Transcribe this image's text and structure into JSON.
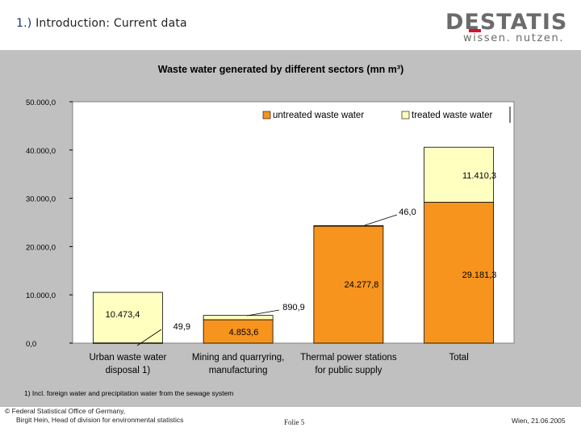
{
  "slide": {
    "title_number": "1.)",
    "title_section": "Introduction:",
    "title_topic": "Current data"
  },
  "logo": {
    "wordmark": "DESTATIS",
    "tagline": "wissen. nutzen."
  },
  "footer": {
    "copyright_line1": "© Federal Statistical Office of Germany,",
    "copyright_line2": "Birgit Hein, Head of division for environmental statistics",
    "slide_label": "Folie 5",
    "date": "Wien, 21.06.2005"
  },
  "colors": {
    "untreated": "#f7941d",
    "treated": "#ffffc0",
    "panel": "#c0c0c0"
  },
  "chart_data": {
    "type": "bar",
    "stacked": true,
    "title": "Waste water generated by different sectors (mn m³)",
    "categories": [
      [
        "Urban waste water",
        "disposal 1)"
      ],
      [
        "Mining and quarryring,",
        "manufacturing"
      ],
      [
        "Thermal power stations",
        "for public supply"
      ],
      [
        "Total"
      ]
    ],
    "series": [
      {
        "name": "untreated waste water",
        "values": [
          49.9,
          4853.6,
          24277.8,
          29181.3
        ],
        "labels": [
          "49,9",
          "4.853,6",
          "24.277,8",
          "29.181,3"
        ]
      },
      {
        "name": "treated waste water",
        "values": [
          10473.4,
          890.9,
          46.0,
          11410.3
        ],
        "labels": [
          "10.473,4",
          "890,9",
          "46,0",
          "11.410,3"
        ]
      }
    ],
    "ylim": [
      0,
      50000
    ],
    "yticks": [
      0,
      10000,
      20000,
      30000,
      40000,
      50000
    ],
    "ytick_labels": [
      "0,0",
      "10.000,0",
      "20.000,0",
      "30.000,0",
      "40.000,0",
      "50.000,0"
    ],
    "legend_position": "top-right",
    "grid": false,
    "footnote": "1) Incl. foreign water and precipitation water from the sewage system"
  }
}
